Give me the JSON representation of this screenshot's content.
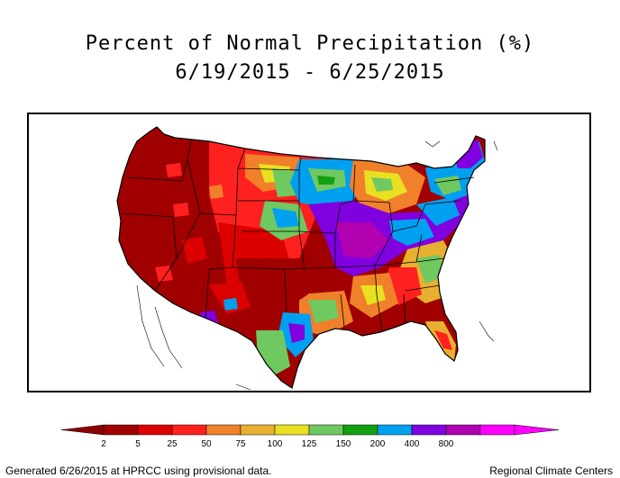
{
  "title": {
    "line1": "Percent of Normal Precipitation (%)",
    "line2": "6/19/2015 - 6/25/2015"
  },
  "legend": {
    "labels": [
      "2",
      "5",
      "25",
      "50",
      "75",
      "100",
      "125",
      "150",
      "200",
      "400",
      "800"
    ],
    "colors": [
      "#a00000",
      "#dd0000",
      "#ff2020",
      "#f0802a",
      "#e8b030",
      "#e8e020",
      "#70c860",
      "#10a010",
      "#00a0f0",
      "#8000e0",
      "#b000b0",
      "#ff00ff"
    ],
    "low_color": "#8b0000",
    "high_color": "#ff00ff"
  },
  "footer": {
    "left": "Generated 6/26/2015 at HPRCC using provisional data.",
    "right": "Regional Climate Centers"
  }
}
